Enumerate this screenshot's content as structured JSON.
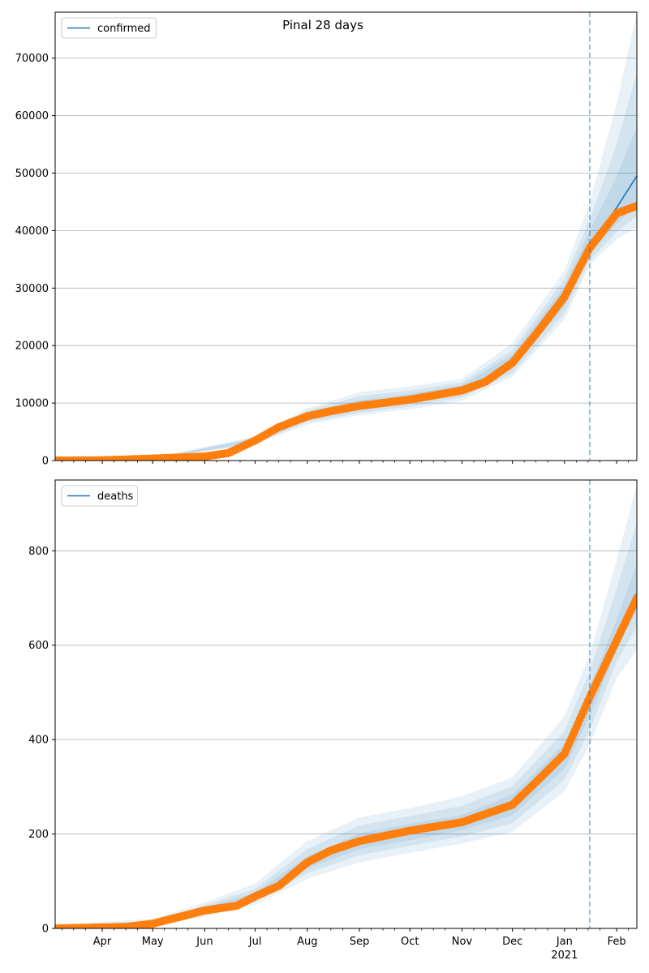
{
  "title": "Pinal 28 days",
  "colors": {
    "model": "#1f77b4",
    "observed": "#ff7f0e",
    "band": "#1f77b4",
    "grid": "#b0b0b0",
    "forecast_line": "#1f77b4"
  },
  "x_axis": {
    "month_labels": [
      "Apr",
      "May",
      "Jun",
      "Jul",
      "Aug",
      "Sep",
      "Oct",
      "Nov",
      "Dec",
      "Jan",
      "Feb"
    ],
    "month_starts": [
      "2020-04-01",
      "2020-05-01",
      "2020-06-01",
      "2020-07-01",
      "2020-08-01",
      "2020-09-01",
      "2020-10-01",
      "2020-11-01",
      "2020-12-01",
      "2021-01-01",
      "2021-02-01"
    ],
    "year_label": "2021",
    "range": [
      "2020-03-04",
      "2021-02-13"
    ],
    "forecast_start": "2021-01-16"
  },
  "chart_data": [
    {
      "type": "line",
      "legend": "confirmed",
      "legend_position": "top-left",
      "grid": "horizontal",
      "ylim": [
        0,
        78000
      ],
      "yticks": [
        0,
        10000,
        20000,
        30000,
        40000,
        50000,
        60000,
        70000
      ],
      "series": [
        {
          "name": "confirmed",
          "x": [
            "2020-03-04",
            "2020-04-01",
            "2020-05-01",
            "2020-06-01",
            "2020-06-15",
            "2020-07-01",
            "2020-07-15",
            "2020-08-01",
            "2020-08-15",
            "2020-09-01",
            "2020-10-01",
            "2020-11-01",
            "2020-11-15",
            "2020-12-01",
            "2020-12-15",
            "2021-01-01",
            "2021-01-16",
            "2021-02-01",
            "2021-02-13"
          ],
          "values": [
            0,
            50,
            350,
            700,
            1300,
            3500,
            5800,
            7700,
            8600,
            9500,
            10600,
            12200,
            13700,
            17000,
            22000,
            28500,
            37500,
            44000,
            49500
          ]
        }
      ],
      "observed": {
        "x": [
          "2020-03-04",
          "2020-04-01",
          "2020-05-01",
          "2020-06-01",
          "2020-06-15",
          "2020-07-01",
          "2020-07-15",
          "2020-08-01",
          "2020-08-15",
          "2020-09-01",
          "2020-10-01",
          "2020-11-01",
          "2020-11-15",
          "2020-12-01",
          "2020-12-15",
          "2021-01-01",
          "2021-01-16",
          "2021-02-01",
          "2021-02-13"
        ],
        "values": [
          0,
          50,
          350,
          700,
          1300,
          3500,
          5800,
          7700,
          8600,
          9500,
          10600,
          12200,
          13700,
          17000,
          22000,
          28500,
          37000,
          43000,
          44300
        ]
      },
      "bands": [
        {
          "x": [
            "2020-05-01",
            "2020-07-01",
            "2020-08-01",
            "2020-09-01",
            "2020-10-01",
            "2020-11-01",
            "2020-12-01",
            "2021-01-01",
            "2021-01-16",
            "2021-02-01",
            "2021-02-13"
          ],
          "lower": [
            280,
            2800,
            6300,
            7900,
            8900,
            10400,
            14600,
            24500,
            34000,
            38500,
            40500
          ],
          "upper": [
            420,
            4200,
            9100,
            11900,
            12900,
            14200,
            20400,
            33000,
            45000,
            62000,
            78000
          ]
        },
        {
          "x": [
            "2020-05-01",
            "2020-07-01",
            "2020-08-01",
            "2020-09-01",
            "2020-10-01",
            "2020-11-01",
            "2020-12-01",
            "2021-01-01",
            "2021-01-16",
            "2021-02-01",
            "2021-02-13"
          ],
          "lower": [
            300,
            3000,
            6700,
            8300,
            9400,
            11000,
            15200,
            25600,
            34800,
            39800,
            42500
          ],
          "upper": [
            400,
            4000,
            8700,
            11200,
            12200,
            13600,
            19200,
            31600,
            42000,
            55000,
            67500
          ]
        },
        {
          "x": [
            "2020-05-01",
            "2020-07-01",
            "2020-08-01",
            "2020-09-01",
            "2020-10-01",
            "2020-11-01",
            "2020-12-01",
            "2021-01-01",
            "2021-01-16",
            "2021-02-01",
            "2021-02-13"
          ],
          "lower": [
            320,
            3200,
            7100,
            8800,
            9900,
            11500,
            16000,
            26800,
            35800,
            41200,
            44500
          ],
          "upper": [
            380,
            3800,
            8300,
            10500,
            11600,
            13100,
            18400,
            30400,
            40000,
            49500,
            58000
          ]
        }
      ]
    },
    {
      "type": "line",
      "legend": "deaths",
      "legend_position": "top-left",
      "grid": "horizontal",
      "ylim": [
        0,
        950
      ],
      "yticks": [
        0,
        200,
        400,
        600,
        800
      ],
      "series": [
        {
          "name": "deaths",
          "x": [
            "2020-03-04",
            "2020-04-15",
            "2020-05-01",
            "2020-06-01",
            "2020-06-20",
            "2020-07-01",
            "2020-07-15",
            "2020-08-01",
            "2020-08-15",
            "2020-09-01",
            "2020-10-01",
            "2020-11-01",
            "2020-12-01",
            "2020-12-15",
            "2021-01-01",
            "2021-01-16",
            "2021-02-01",
            "2021-02-13"
          ],
          "values": [
            0,
            3,
            10,
            38,
            48,
            68,
            90,
            140,
            165,
            185,
            207,
            225,
            262,
            305,
            365,
            480,
            620,
            710
          ]
        }
      ],
      "observed": {
        "x": [
          "2020-03-04",
          "2020-04-15",
          "2020-05-01",
          "2020-06-01",
          "2020-06-20",
          "2020-07-01",
          "2020-07-15",
          "2020-08-01",
          "2020-08-15",
          "2020-09-01",
          "2020-10-01",
          "2020-11-01",
          "2020-12-01",
          "2020-12-15",
          "2021-01-01",
          "2021-01-16",
          "2021-02-01",
          "2021-02-13"
        ],
        "values": [
          0,
          3,
          10,
          38,
          48,
          68,
          90,
          140,
          165,
          185,
          207,
          225,
          262,
          310,
          370,
          490,
          610,
          700
        ]
      },
      "bands": [
        {
          "x": [
            "2020-03-04",
            "2020-05-01",
            "2020-06-01",
            "2020-07-01",
            "2020-08-01",
            "2020-09-01",
            "2020-10-01",
            "2020-11-01",
            "2020-12-01",
            "2021-01-01",
            "2021-01-16",
            "2021-02-01",
            "2021-02-13"
          ],
          "lower": [
            0,
            4,
            25,
            50,
            105,
            140,
            160,
            180,
            205,
            290,
            390,
            530,
            590
          ],
          "upper": [
            8,
            20,
            55,
            95,
            185,
            235,
            255,
            280,
            320,
            450,
            580,
            780,
            940
          ]
        },
        {
          "x": [
            "2020-03-04",
            "2020-05-01",
            "2020-06-01",
            "2020-07-01",
            "2020-08-01",
            "2020-09-01",
            "2020-10-01",
            "2020-11-01",
            "2020-12-01",
            "2021-01-01",
            "2021-01-16",
            "2021-02-01",
            "2021-02-13"
          ],
          "lower": [
            0,
            6,
            29,
            56,
            117,
            155,
            175,
            195,
            223,
            315,
            420,
            565,
            640
          ],
          "upper": [
            6,
            16,
            49,
            84,
            168,
            218,
            238,
            260,
            302,
            418,
            545,
            720,
            860
          ]
        },
        {
          "x": [
            "2020-03-04",
            "2020-05-01",
            "2020-06-01",
            "2020-07-01",
            "2020-08-01",
            "2020-09-01",
            "2020-10-01",
            "2020-11-01",
            "2020-12-01",
            "2021-01-01",
            "2021-01-16",
            "2021-02-01",
            "2021-02-13"
          ],
          "lower": [
            0,
            8,
            33,
            61,
            127,
            168,
            187,
            208,
            240,
            338,
            450,
            590,
            675
          ],
          "upper": [
            4,
            13,
            44,
            76,
            153,
            201,
            222,
            240,
            284,
            392,
            510,
            655,
            770
          ]
        }
      ]
    }
  ]
}
